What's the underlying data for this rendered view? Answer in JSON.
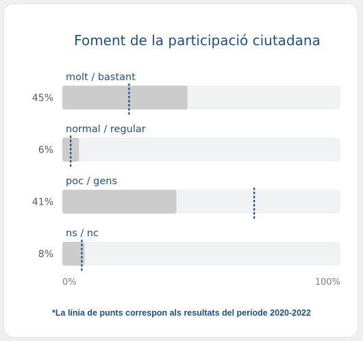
{
  "chart_data": {
    "type": "bar",
    "orientation": "horizontal",
    "title": "Foment de la participació ciutadana",
    "categories": [
      "molt / bastant",
      "normal / regular",
      "poc / gens",
      "ns / nc"
    ],
    "value_labels": [
      "45%",
      "6%",
      "41%",
      "8%"
    ],
    "series": [
      {
        "values": [
          45,
          6,
          41,
          8
        ]
      }
    ],
    "reference_values": [
      24,
      3,
      69,
      7
    ],
    "xlim": [
      0,
      100
    ],
    "xticks": [
      "0%",
      "100%"
    ],
    "grid": false,
    "footnote": "*La línia de punts correspon als resultats del període 2020-2022",
    "colors": {
      "bar": "#cccccc",
      "track": "#f1f2f4",
      "reference_line": "#1f4e87",
      "text": "#1f4e87"
    }
  }
}
